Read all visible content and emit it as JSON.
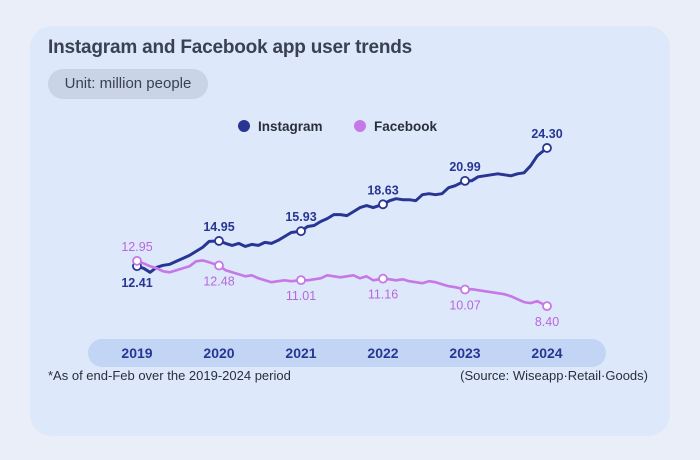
{
  "chart_data": {
    "type": "line",
    "title": "Instagram and Facebook app user trends",
    "unit_label": "Unit: million people",
    "categories": [
      "2019",
      "2020",
      "2021",
      "2022",
      "2023",
      "2024"
    ],
    "xlabel": "",
    "ylabel": "",
    "ylim": [
      6,
      26
    ],
    "series": [
      {
        "name": "Instagram",
        "color": "#283593",
        "marker_values": [
          12.41,
          14.95,
          15.93,
          18.63,
          20.99,
          24.3
        ],
        "marker_labels": [
          "12.41",
          "14.95",
          "15.93",
          "18.63",
          "20.99",
          "24.30"
        ],
        "x": [
          0,
          0.08,
          0.16,
          0.24,
          0.32,
          0.4,
          0.48,
          0.56,
          0.64,
          0.72,
          0.8,
          0.88,
          1,
          1.08,
          1.16,
          1.24,
          1.32,
          1.4,
          1.48,
          1.56,
          1.64,
          1.72,
          1.8,
          1.88,
          2,
          2.08,
          2.16,
          2.24,
          2.32,
          2.4,
          2.48,
          2.56,
          2.64,
          2.72,
          2.8,
          2.88,
          3,
          3.08,
          3.16,
          3.24,
          3.32,
          3.4,
          3.48,
          3.56,
          3.64,
          3.72,
          3.8,
          3.88,
          4,
          4.08,
          4.16,
          4.24,
          4.32,
          4.4,
          4.48,
          4.56,
          4.64,
          4.72,
          4.8,
          4.88,
          5
        ],
        "values": [
          12.41,
          12.2,
          11.8,
          12.3,
          12.5,
          12.6,
          12.9,
          13.2,
          13.5,
          13.9,
          14.3,
          14.9,
          14.95,
          14.7,
          14.5,
          14.7,
          14.4,
          14.6,
          14.5,
          14.8,
          14.7,
          15.0,
          15.4,
          15.8,
          15.93,
          16.4,
          16.5,
          16.9,
          17.2,
          17.6,
          17.6,
          17.5,
          17.9,
          18.3,
          18.5,
          18.3,
          18.63,
          19.0,
          19.2,
          19.1,
          19.1,
          19.0,
          19.6,
          19.7,
          19.6,
          19.7,
          20.3,
          20.5,
          20.99,
          21.0,
          21.4,
          21.5,
          21.6,
          21.7,
          21.6,
          21.5,
          21.7,
          21.8,
          22.5,
          23.5,
          24.3
        ]
      },
      {
        "name": "Facebook",
        "color": "#c578e6",
        "marker_values": [
          12.95,
          12.48,
          11.01,
          11.16,
          10.07,
          8.4
        ],
        "marker_labels": [
          "12.95",
          "12.48",
          "11.01",
          "11.16",
          "10.07",
          "8.40"
        ],
        "x": [
          0,
          0.08,
          0.16,
          0.24,
          0.32,
          0.4,
          0.48,
          0.56,
          0.64,
          0.72,
          0.8,
          0.88,
          1,
          1.08,
          1.16,
          1.24,
          1.32,
          1.4,
          1.48,
          1.56,
          1.64,
          1.72,
          1.8,
          1.88,
          2,
          2.08,
          2.16,
          2.24,
          2.32,
          2.4,
          2.48,
          2.56,
          2.64,
          2.72,
          2.8,
          2.88,
          3,
          3.08,
          3.16,
          3.24,
          3.32,
          3.4,
          3.48,
          3.56,
          3.64,
          3.72,
          3.8,
          3.88,
          4,
          4.08,
          4.16,
          4.24,
          4.32,
          4.4,
          4.48,
          4.56,
          4.64,
          4.72,
          4.8,
          4.88,
          5
        ],
        "values": [
          12.95,
          12.7,
          12.4,
          12.2,
          11.9,
          11.8,
          12.0,
          12.2,
          12.4,
          12.9,
          13.0,
          12.8,
          12.48,
          12.0,
          11.8,
          11.6,
          11.4,
          11.5,
          11.2,
          11.0,
          10.8,
          10.9,
          11.0,
          10.9,
          11.01,
          11.0,
          11.1,
          11.2,
          11.5,
          11.4,
          11.3,
          11.4,
          11.5,
          11.2,
          11.4,
          11.0,
          11.16,
          11.1,
          11.0,
          11.1,
          10.9,
          10.8,
          10.7,
          10.9,
          10.8,
          10.6,
          10.4,
          10.3,
          10.07,
          10.1,
          10.0,
          9.9,
          9.8,
          9.7,
          9.6,
          9.4,
          9.1,
          8.8,
          8.7,
          8.9,
          8.4
        ]
      }
    ],
    "year_bar_color": "#c3d5f4",
    "footnote": "*As of end-Feb over the 2019-2024 period",
    "source": "(Source: Wiseapp·Retail·Goods)"
  }
}
